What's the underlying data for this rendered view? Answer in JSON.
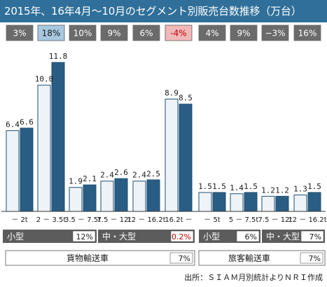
{
  "title": "2015年、16年4月～10月のセグメント別販売台数推移（万台）",
  "source_note": "出所：ＳＩＡＭ月別統計よりＮＲＩ作成",
  "colors": {
    "title_bg": "#2f6f99",
    "bar_2015": "#eef3f8",
    "bar_2016": "#2a5d84",
    "bar_border": "#1f4f72",
    "growth_box": "#6b6b6b",
    "growth_highlight": "#a8c8e0",
    "growth_negative": "#f2b8b8",
    "group_label_bg": "#5c5c5c"
  },
  "chart_data": {
    "type": "bar",
    "series": [
      {
        "values": [
          6.4,
          10.0,
          1.9,
          2.4,
          2.4,
          8.9,
          1.5,
          1.4,
          1.2,
          1.3
        ]
      },
      {
        "values": [
          6.6,
          11.8,
          2.1,
          2.6,
          2.5,
          8.5,
          1.5,
          1.5,
          1.2,
          1.5
        ]
      }
    ],
    "value_labels": [
      [
        "6.4",
        "6.6"
      ],
      [
        "10.0",
        "11.8"
      ],
      [
        "1.9",
        "2.1"
      ],
      [
        "2.4",
        "2.6"
      ],
      [
        "2.4",
        "2.5"
      ],
      [
        "8.9",
        "8.5"
      ],
      [
        "1.5",
        "1.5"
      ],
      [
        "1.4",
        "1.5"
      ],
      [
        "1.2",
        "1.2"
      ],
      [
        "1.3",
        "1.5"
      ]
    ],
    "categories": [
      "－ 2t",
      "2 － 3.5t",
      "3.5 － 7.5t",
      "7.5 － 12t",
      "12 － 16.2t",
      "16.2t －",
      "－ 5t",
      "5 － 7.5t",
      "7.5 － 12t",
      "12 － 16.2t"
    ],
    "growth_rates": [
      "3%",
      "18%",
      "10%",
      "9%",
      "6%",
      "-4%",
      "4%",
      "9%",
      "−3%",
      "16%"
    ],
    "growth_styles": [
      "normal",
      "highlight",
      "normal",
      "normal",
      "normal",
      "negative",
      "normal",
      "normal",
      "normal",
      "normal"
    ],
    "segments": [
      {
        "label": "小型",
        "value": "12%",
        "value_negative": false
      },
      {
        "label": "中・大型",
        "value": "0.2%",
        "value_negative": true
      },
      {
        "label": "小型",
        "value": "6%",
        "value_negative": false
      },
      {
        "label": "中・大型",
        "value": "7%",
        "value_negative": false
      }
    ],
    "groups": [
      {
        "label": "貨物輸送車",
        "value": "7%"
      },
      {
        "label": "旅客輸送車",
        "value": "7%"
      }
    ],
    "ylim": [
      0,
      13
    ]
  }
}
